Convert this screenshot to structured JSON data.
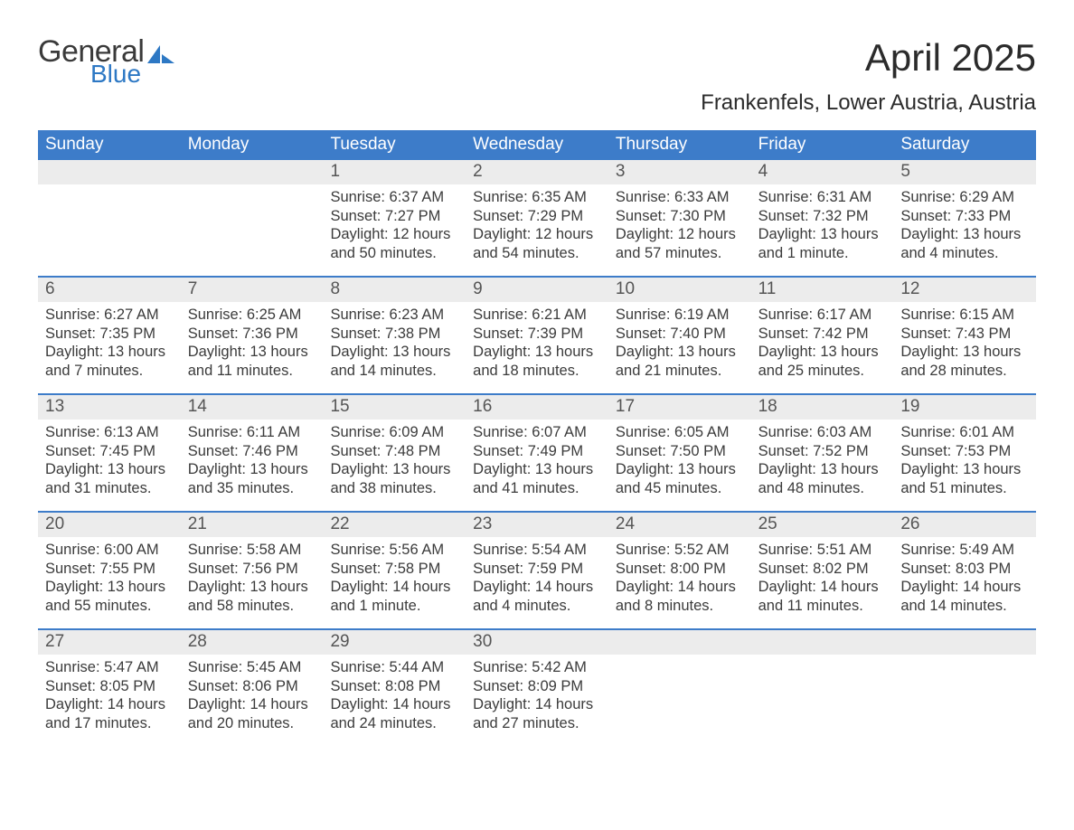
{
  "brand": {
    "part1": "General",
    "part2": "Blue",
    "color1": "#3a3a3a",
    "color2": "#2d78c4"
  },
  "title": "April 2025",
  "location": "Frankenfels, Lower Austria, Austria",
  "colors": {
    "header_bg": "#3d7cc9",
    "header_text": "#ffffff",
    "daynum_bg": "#ececec",
    "week_border": "#3d7cc9",
    "body_text": "#3b3b3b",
    "background": "#ffffff"
  },
  "typography": {
    "title_fontsize": 42,
    "subtitle_fontsize": 24,
    "weekday_fontsize": 19,
    "daynum_fontsize": 19,
    "body_fontsize": 16.5
  },
  "calendar": {
    "type": "table",
    "columns": [
      "Sunday",
      "Monday",
      "Tuesday",
      "Wednesday",
      "Thursday",
      "Friday",
      "Saturday"
    ],
    "start_weekday_index": 2,
    "days": [
      {
        "n": 1,
        "sunrise": "6:37 AM",
        "sunset": "7:27 PM",
        "daylight": "12 hours and 50 minutes."
      },
      {
        "n": 2,
        "sunrise": "6:35 AM",
        "sunset": "7:29 PM",
        "daylight": "12 hours and 54 minutes."
      },
      {
        "n": 3,
        "sunrise": "6:33 AM",
        "sunset": "7:30 PM",
        "daylight": "12 hours and 57 minutes."
      },
      {
        "n": 4,
        "sunrise": "6:31 AM",
        "sunset": "7:32 PM",
        "daylight": "13 hours and 1 minute."
      },
      {
        "n": 5,
        "sunrise": "6:29 AM",
        "sunset": "7:33 PM",
        "daylight": "13 hours and 4 minutes."
      },
      {
        "n": 6,
        "sunrise": "6:27 AM",
        "sunset": "7:35 PM",
        "daylight": "13 hours and 7 minutes."
      },
      {
        "n": 7,
        "sunrise": "6:25 AM",
        "sunset": "7:36 PM",
        "daylight": "13 hours and 11 minutes."
      },
      {
        "n": 8,
        "sunrise": "6:23 AM",
        "sunset": "7:38 PM",
        "daylight": "13 hours and 14 minutes."
      },
      {
        "n": 9,
        "sunrise": "6:21 AM",
        "sunset": "7:39 PM",
        "daylight": "13 hours and 18 minutes."
      },
      {
        "n": 10,
        "sunrise": "6:19 AM",
        "sunset": "7:40 PM",
        "daylight": "13 hours and 21 minutes."
      },
      {
        "n": 11,
        "sunrise": "6:17 AM",
        "sunset": "7:42 PM",
        "daylight": "13 hours and 25 minutes."
      },
      {
        "n": 12,
        "sunrise": "6:15 AM",
        "sunset": "7:43 PM",
        "daylight": "13 hours and 28 minutes."
      },
      {
        "n": 13,
        "sunrise": "6:13 AM",
        "sunset": "7:45 PM",
        "daylight": "13 hours and 31 minutes."
      },
      {
        "n": 14,
        "sunrise": "6:11 AM",
        "sunset": "7:46 PM",
        "daylight": "13 hours and 35 minutes."
      },
      {
        "n": 15,
        "sunrise": "6:09 AM",
        "sunset": "7:48 PM",
        "daylight": "13 hours and 38 minutes."
      },
      {
        "n": 16,
        "sunrise": "6:07 AM",
        "sunset": "7:49 PM",
        "daylight": "13 hours and 41 minutes."
      },
      {
        "n": 17,
        "sunrise": "6:05 AM",
        "sunset": "7:50 PM",
        "daylight": "13 hours and 45 minutes."
      },
      {
        "n": 18,
        "sunrise": "6:03 AM",
        "sunset": "7:52 PM",
        "daylight": "13 hours and 48 minutes."
      },
      {
        "n": 19,
        "sunrise": "6:01 AM",
        "sunset": "7:53 PM",
        "daylight": "13 hours and 51 minutes."
      },
      {
        "n": 20,
        "sunrise": "6:00 AM",
        "sunset": "7:55 PM",
        "daylight": "13 hours and 55 minutes."
      },
      {
        "n": 21,
        "sunrise": "5:58 AM",
        "sunset": "7:56 PM",
        "daylight": "13 hours and 58 minutes."
      },
      {
        "n": 22,
        "sunrise": "5:56 AM",
        "sunset": "7:58 PM",
        "daylight": "14 hours and 1 minute."
      },
      {
        "n": 23,
        "sunrise": "5:54 AM",
        "sunset": "7:59 PM",
        "daylight": "14 hours and 4 minutes."
      },
      {
        "n": 24,
        "sunrise": "5:52 AM",
        "sunset": "8:00 PM",
        "daylight": "14 hours and 8 minutes."
      },
      {
        "n": 25,
        "sunrise": "5:51 AM",
        "sunset": "8:02 PM",
        "daylight": "14 hours and 11 minutes."
      },
      {
        "n": 26,
        "sunrise": "5:49 AM",
        "sunset": "8:03 PM",
        "daylight": "14 hours and 14 minutes."
      },
      {
        "n": 27,
        "sunrise": "5:47 AM",
        "sunset": "8:05 PM",
        "daylight": "14 hours and 17 minutes."
      },
      {
        "n": 28,
        "sunrise": "5:45 AM",
        "sunset": "8:06 PM",
        "daylight": "14 hours and 20 minutes."
      },
      {
        "n": 29,
        "sunrise": "5:44 AM",
        "sunset": "8:08 PM",
        "daylight": "14 hours and 24 minutes."
      },
      {
        "n": 30,
        "sunrise": "5:42 AM",
        "sunset": "8:09 PM",
        "daylight": "14 hours and 27 minutes."
      }
    ],
    "labels": {
      "sunrise": "Sunrise:",
      "sunset": "Sunset:",
      "daylight": "Daylight:"
    }
  }
}
